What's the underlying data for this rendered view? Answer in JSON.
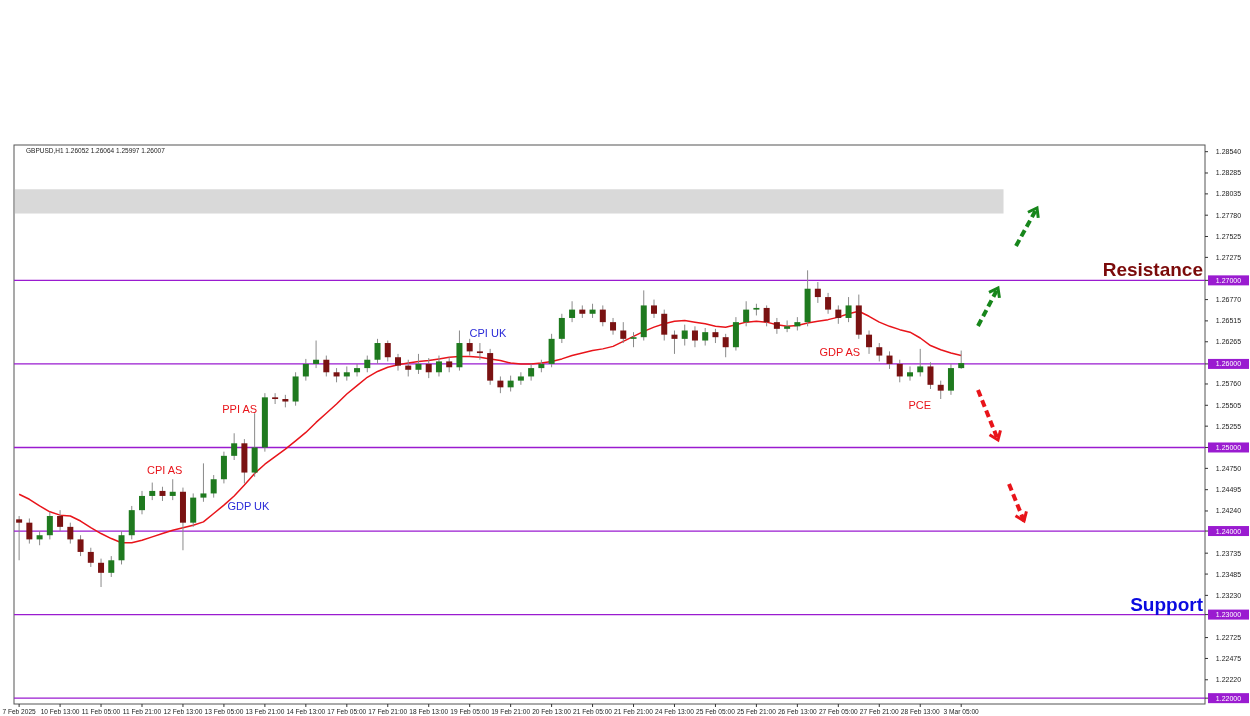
{
  "chart_data": {
    "type": "candlestick",
    "annotations": [
      "GBPUSD,H1  1.26052 1.26064 1.25997 1.26007",
      "CPI AS",
      "GDP UK",
      "PPI AS",
      "CPI UK",
      "GDP AS",
      "PCE"
    ],
    "categories": [
      "7 Feb 2025",
      null,
      null,
      null,
      "10 Feb 13:00",
      null,
      null,
      null,
      "11 Feb 05:00",
      null,
      null,
      null,
      "11 Feb 21:00",
      null,
      null,
      null,
      "12 Feb 13:00",
      null,
      null,
      null,
      "13 Feb 05:00",
      null,
      null,
      null,
      "13 Feb 21:00",
      null,
      null,
      null,
      "14 Feb 13:00",
      null,
      null,
      null,
      "17 Feb 05:00",
      null,
      null,
      null,
      "17 Feb 21:00",
      null,
      null,
      null,
      "18 Feb 13:00",
      null,
      null,
      null,
      "19 Feb 05:00",
      null,
      null,
      null,
      "19 Feb 21:00",
      null,
      null,
      null,
      "20 Feb 13:00",
      null,
      null,
      null,
      "21 Feb 05:00",
      null,
      null,
      null,
      "21 Feb 21:00",
      null,
      null,
      null,
      "24 Feb 13:00",
      null,
      null,
      null,
      "25 Feb 05:00",
      null,
      null,
      null,
      "25 Feb 21:00",
      null,
      null,
      null,
      "26 Feb 13:00",
      null,
      null,
      null,
      "27 Feb 05:00",
      null,
      null,
      null,
      "27 Feb 21:00",
      null,
      null,
      null,
      "28 Feb 13:00",
      null,
      null,
      null,
      "3 Mar 05:00"
    ],
    "series": [
      {
        "ohlc": [
          [
            1.2414,
            1.2418,
            1.2365,
            1.241
          ],
          [
            1.241,
            1.2415,
            1.2385,
            1.239
          ],
          [
            1.239,
            1.24,
            1.2383,
            1.2395
          ],
          [
            1.2395,
            1.2423,
            1.239,
            1.2418
          ],
          [
            1.2418,
            1.2425,
            1.24,
            1.2405
          ],
          [
            1.2405,
            1.241,
            1.2385,
            1.239
          ],
          [
            1.239,
            1.2395,
            1.237,
            1.2375
          ],
          [
            1.2375,
            1.238,
            1.2357,
            1.2362
          ],
          [
            1.2362,
            1.2367,
            1.2333,
            1.235
          ],
          [
            1.235,
            1.237,
            1.2345,
            1.2365
          ],
          [
            1.2365,
            1.24,
            1.236,
            1.2395
          ],
          [
            1.2395,
            1.243,
            1.239,
            1.2425
          ],
          [
            1.2425,
            1.2448,
            1.242,
            1.2442
          ],
          [
            1.2442,
            1.2458,
            1.2437,
            1.2448
          ],
          [
            1.2448,
            1.2453,
            1.2436,
            1.2442
          ],
          [
            1.2442,
            1.2462,
            1.2437,
            1.2447
          ],
          [
            1.2447,
            1.2452,
            1.2377,
            1.241
          ],
          [
            1.241,
            1.2445,
            1.2405,
            1.244
          ],
          [
            1.244,
            1.2481,
            1.2435,
            1.2445
          ],
          [
            1.2445,
            1.2467,
            1.244,
            1.2462
          ],
          [
            1.2462,
            1.2495,
            1.2457,
            1.249
          ],
          [
            1.249,
            1.2517,
            1.2485,
            1.2505
          ],
          [
            1.2505,
            1.251,
            1.2457,
            1.247
          ],
          [
            1.247,
            1.2541,
            1.2465,
            1.25
          ],
          [
            1.25,
            1.2565,
            1.2495,
            1.256
          ],
          [
            1.256,
            1.2565,
            1.2552,
            1.2558
          ],
          [
            1.2558,
            1.2563,
            1.2548,
            1.2555
          ],
          [
            1.2555,
            1.259,
            1.255,
            1.2585
          ],
          [
            1.2585,
            1.2606,
            1.258,
            1.26
          ],
          [
            1.26,
            1.2628,
            1.2595,
            1.2605
          ],
          [
            1.2605,
            1.261,
            1.2585,
            1.259
          ],
          [
            1.259,
            1.2595,
            1.2578,
            1.2585
          ],
          [
            1.2585,
            1.2597,
            1.258,
            1.259
          ],
          [
            1.259,
            1.26,
            1.2585,
            1.2595
          ],
          [
            1.2595,
            1.261,
            1.259,
            1.2605
          ],
          [
            1.2605,
            1.263,
            1.26,
            1.2625
          ],
          [
            1.2625,
            1.2628,
            1.2603,
            1.2608
          ],
          [
            1.2608,
            1.2612,
            1.2592,
            1.2598
          ],
          [
            1.2598,
            1.2605,
            1.2585,
            1.2593
          ],
          [
            1.2593,
            1.2612,
            1.2588,
            1.26
          ],
          [
            1.26,
            1.2607,
            1.2583,
            1.259
          ],
          [
            1.259,
            1.261,
            1.2585,
            1.2603
          ],
          [
            1.2603,
            1.2608,
            1.259,
            1.2596
          ],
          [
            1.2596,
            1.264,
            1.2592,
            1.2625
          ],
          [
            1.2625,
            1.263,
            1.261,
            1.2615
          ],
          [
            1.2615,
            1.2625,
            1.2605,
            1.2613
          ],
          [
            1.2613,
            1.2618,
            1.2575,
            1.258
          ],
          [
            1.258,
            1.2585,
            1.2565,
            1.2572
          ],
          [
            1.2572,
            1.2586,
            1.2567,
            1.258
          ],
          [
            1.258,
            1.259,
            1.2575,
            1.2585
          ],
          [
            1.2585,
            1.26,
            1.258,
            1.2595
          ],
          [
            1.2595,
            1.2605,
            1.259,
            1.26
          ],
          [
            1.26,
            1.2636,
            1.2596,
            1.263
          ],
          [
            1.263,
            1.266,
            1.2625,
            1.2655
          ],
          [
            1.2655,
            1.2675,
            1.265,
            1.2665
          ],
          [
            1.2665,
            1.267,
            1.2655,
            1.266
          ],
          [
            1.266,
            1.2672,
            1.2655,
            1.2665
          ],
          [
            1.2665,
            1.267,
            1.2645,
            1.265
          ],
          [
            1.265,
            1.2655,
            1.2635,
            1.264
          ],
          [
            1.264,
            1.265,
            1.2625,
            1.263
          ],
          [
            1.263,
            1.2638,
            1.262,
            1.2632
          ],
          [
            1.2632,
            1.2688,
            1.2628,
            1.267
          ],
          [
            1.267,
            1.2677,
            1.2655,
            1.266
          ],
          [
            1.266,
            1.2665,
            1.2628,
            1.2635
          ],
          [
            1.2635,
            1.264,
            1.2612,
            1.263
          ],
          [
            1.263,
            1.2647,
            1.2622,
            1.264
          ],
          [
            1.264,
            1.2645,
            1.262,
            1.2628
          ],
          [
            1.2628,
            1.2643,
            1.2622,
            1.2638
          ],
          [
            1.2638,
            1.2642,
            1.2625,
            1.2632
          ],
          [
            1.2632,
            1.2636,
            1.2608,
            1.262
          ],
          [
            1.262,
            1.2656,
            1.2616,
            1.265
          ],
          [
            1.265,
            1.2675,
            1.2645,
            1.2665
          ],
          [
            1.2665,
            1.2672,
            1.2658,
            1.2667
          ],
          [
            1.2667,
            1.267,
            1.2645,
            1.265
          ],
          [
            1.265,
            1.2655,
            1.2636,
            1.2642
          ],
          [
            1.2642,
            1.2652,
            1.2638,
            1.2645
          ],
          [
            1.2645,
            1.2656,
            1.264,
            1.265
          ],
          [
            1.265,
            1.2712,
            1.2645,
            1.269
          ],
          [
            1.269,
            1.2698,
            1.2673,
            1.268
          ],
          [
            1.268,
            1.2685,
            1.266,
            1.2665
          ],
          [
            1.2665,
            1.267,
            1.2648,
            1.2655
          ],
          [
            1.2655,
            1.268,
            1.265,
            1.267
          ],
          [
            1.267,
            1.2683,
            1.263,
            1.2635
          ],
          [
            1.2635,
            1.264,
            1.2612,
            1.262
          ],
          [
            1.262,
            1.2625,
            1.2603,
            1.261
          ],
          [
            1.261,
            1.2615,
            1.2594,
            1.26
          ],
          [
            1.26,
            1.2605,
            1.2578,
            1.2585
          ],
          [
            1.2585,
            1.2597,
            1.258,
            1.259
          ],
          [
            1.259,
            1.2618,
            1.2585,
            1.2597
          ],
          [
            1.2597,
            1.2602,
            1.257,
            1.2575
          ],
          [
            1.2575,
            1.258,
            1.2558,
            1.2568
          ],
          [
            1.2568,
            1.26,
            1.2563,
            1.2595
          ],
          [
            1.2595,
            1.2616,
            1.2594,
            1.2601
          ]
        ]
      },
      {
        "type": "line",
        "color": "#e8141a",
        "values": [
          1.2444,
          1.2438,
          1.243,
          1.2423,
          1.2419,
          1.2418,
          1.2412,
          1.2404,
          1.2397,
          1.2391,
          1.2386,
          1.2386,
          1.2389,
          1.2393,
          1.2397,
          1.2401,
          1.2404,
          1.2407,
          1.2411,
          1.2421,
          1.2431,
          1.2442,
          1.2455,
          1.2469,
          1.248,
          1.2489,
          1.2498,
          1.2508,
          1.2518,
          1.253,
          1.2541,
          1.2552,
          1.2564,
          1.2574,
          1.2584,
          1.2591,
          1.2596,
          1.2599,
          1.2601,
          1.2603,
          1.2604,
          1.2606,
          1.2608,
          1.2609,
          1.2609,
          1.2608,
          1.2606,
          1.2604,
          1.2601,
          1.26,
          1.26,
          1.2601,
          1.2603,
          1.2606,
          1.261,
          1.2613,
          1.2616,
          1.2618,
          1.2621,
          1.2627,
          1.2633,
          1.2639,
          1.2644,
          1.2648,
          1.2651,
          1.2652,
          1.265,
          1.2648,
          1.2645,
          1.2644,
          1.2647,
          1.265,
          1.2651,
          1.265,
          1.2647,
          1.2645,
          1.2646,
          1.2649,
          1.2651,
          1.2653,
          1.2656,
          1.266,
          1.2663,
          1.2657,
          1.265,
          1.2645,
          1.2641,
          1.2638,
          1.2631,
          1.2622,
          1.2617,
          1.2613,
          1.261
        ]
      }
    ],
    "ylim": [
      1.2193,
      1.2862
    ],
    "yticks": [
      {
        "value": 1.2854,
        "label": "1.28540"
      },
      {
        "value": 1.28285,
        "label": "1.28285"
      },
      {
        "value": 1.28035,
        "label": "1.28035"
      },
      {
        "value": 1.2778,
        "label": "1.27780"
      },
      {
        "value": 1.27525,
        "label": "1.27525"
      },
      {
        "value": 1.27275,
        "label": "1.27275"
      },
      {
        "value": 1.27,
        "label": "1.27000"
      },
      {
        "value": 1.2677,
        "label": "1.26770"
      },
      {
        "value": 1.26515,
        "label": "1.26515"
      },
      {
        "value": 1.26265,
        "label": "1.26265"
      },
      {
        "value": 1.26,
        "label": "1.26000"
      },
      {
        "value": 1.2576,
        "label": "1.25760"
      },
      {
        "value": 1.25505,
        "label": "1.25505"
      },
      {
        "value": 1.25255,
        "label": "1.25255"
      },
      {
        "value": 1.25,
        "label": "1.25000"
      },
      {
        "value": 1.2475,
        "label": "1.24750"
      },
      {
        "value": 1.24495,
        "label": "1.24495"
      },
      {
        "value": 1.2424,
        "label": "1.24240"
      },
      {
        "value": 1.24,
        "label": "1.24000"
      },
      {
        "value": 1.23735,
        "label": "1.23735"
      },
      {
        "value": 1.23485,
        "label": "1.23485"
      },
      {
        "value": 1.2323,
        "label": "1.23230"
      },
      {
        "value": 1.23,
        "label": "1.23000"
      },
      {
        "value": 1.22725,
        "label": "1.22725"
      },
      {
        "value": 1.22475,
        "label": "1.22475"
      },
      {
        "value": 1.2222,
        "label": "1.22220"
      },
      {
        "value": 1.22,
        "label": "1.22000"
      }
    ],
    "ref_lines": [
      {
        "axis": "y",
        "value": 1.27,
        "label": "Resistance",
        "color": "#9a1bd0"
      },
      {
        "axis": "y",
        "value": 1.26,
        "color": "#9a1bd0"
      },
      {
        "axis": "y",
        "value": 1.25,
        "color": "#9a1bd0"
      },
      {
        "axis": "y",
        "value": 1.24,
        "color": "#9a1bd0"
      },
      {
        "axis": "y",
        "value": 1.23,
        "label": "Support",
        "color": "#9a1bd0"
      },
      {
        "axis": "y",
        "value": 1.22,
        "color": "#9a1bd0"
      }
    ],
    "bands": [
      {
        "axis": "y",
        "from": 1.278,
        "to": 1.2809,
        "color": "#d9d9d9"
      }
    ]
  }
}
